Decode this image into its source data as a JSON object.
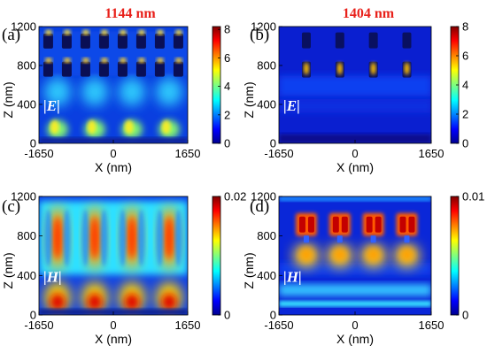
{
  "column_titles": [
    "1144 nm",
    "1404 nm"
  ],
  "colors": {
    "title_red": "#e8201a"
  },
  "chart_data": [
    {
      "type": "heatmap",
      "panel_label": "(a)",
      "field_label": "|E|",
      "xlabel": "X (nm)",
      "ylabel": "Z (nm)",
      "xlim": [
        -1650,
        1650
      ],
      "ylim": [
        0,
        1200
      ],
      "x_ticks": [
        "-1650",
        "0",
        "1650"
      ],
      "y_ticks": [
        "0",
        "400",
        "800",
        "1200"
      ],
      "colorbar": {
        "range": [
          0,
          8.2
        ],
        "ticks": [
          "0",
          "2",
          "4",
          "6",
          "8"
        ]
      }
    },
    {
      "type": "heatmap",
      "panel_label": "(b)",
      "field_label": "|E|",
      "xlabel": "X (nm)",
      "ylabel": "Z (nm)",
      "xlim": [
        -1650,
        1650
      ],
      "ylim": [
        0,
        1200
      ],
      "x_ticks": [
        "-1650",
        "0",
        "1650"
      ],
      "y_ticks": [
        "0",
        "400",
        "800",
        "1200"
      ],
      "colorbar": {
        "range": [
          0,
          8
        ],
        "ticks": [
          "0",
          "2",
          "4",
          "6",
          "8"
        ]
      }
    },
    {
      "type": "heatmap",
      "panel_label": "(c)",
      "field_label": "|H|",
      "xlabel": "X (nm)",
      "ylabel": "Z (nm)",
      "xlim": [
        -1650,
        1650
      ],
      "ylim": [
        0,
        1200
      ],
      "x_ticks": [
        "-1650",
        "0",
        "1650"
      ],
      "y_ticks": [
        "0",
        "400",
        "800",
        "1200"
      ],
      "colorbar": {
        "range": [
          0,
          0.02
        ],
        "ticks": [
          "0",
          "0.02"
        ]
      }
    },
    {
      "type": "heatmap",
      "panel_label": "(d)",
      "field_label": "|H|",
      "xlabel": "X (nm)",
      "ylabel": "Z (nm)",
      "xlim": [
        -1650,
        1650
      ],
      "ylim": [
        0,
        1200
      ],
      "x_ticks": [
        "-1650",
        "0",
        "1650"
      ],
      "y_ticks": [
        "0",
        "400",
        "800",
        "1200"
      ],
      "colorbar": {
        "range": [
          0,
          0.01
        ],
        "ticks": [
          "0",
          "0.01"
        ]
      }
    }
  ]
}
